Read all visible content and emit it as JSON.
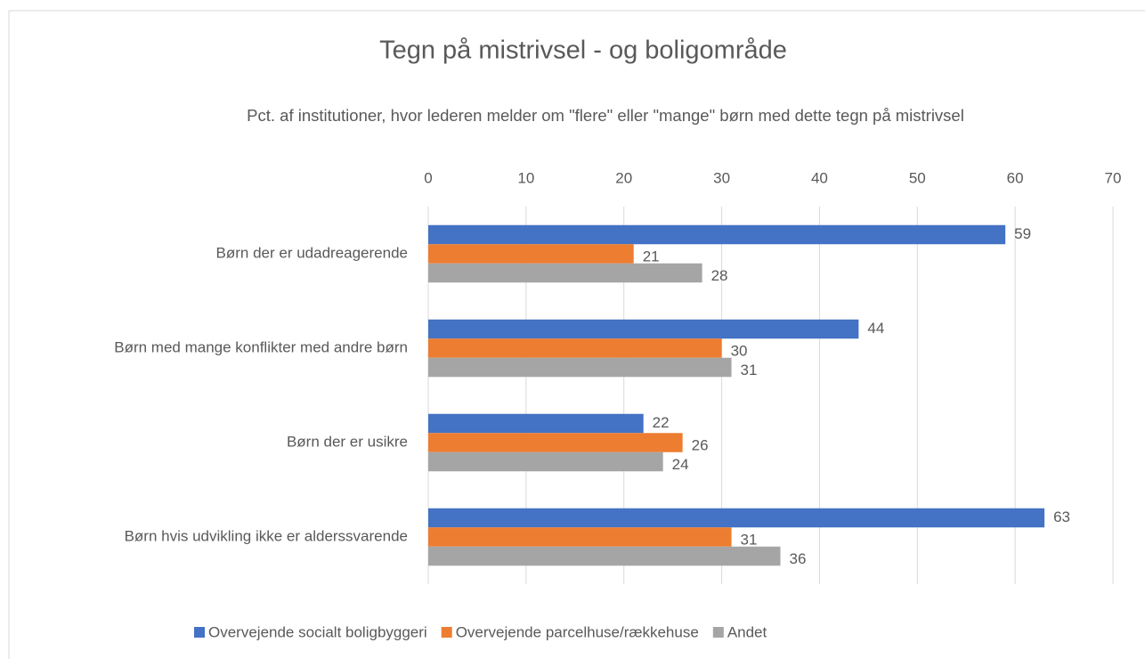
{
  "chart_data": {
    "type": "barh",
    "title": "Tegn på mistrivsel - og boligområde",
    "subtitle": "Pct. af institutioner, hvor lederen melder om \"flere\" eller \"mange\" børn med dette tegn på mistrivsel",
    "categories": [
      "Børn der er udadreagerende",
      "Børn med mange konflikter med andre børn",
      "Børn der er usikre",
      "Børn hvis udvikling ikke er alderssvarende"
    ],
    "series": [
      {
        "name": "Overvejende socialt boligbyggeri",
        "color": "#4472c4",
        "values": [
          59,
          44,
          22,
          63
        ]
      },
      {
        "name": "Overvejende parcelhuse/rækkehuse",
        "color": "#ed7d31",
        "values": [
          21,
          30,
          26,
          31
        ]
      },
      {
        "name": "Andet",
        "color": "#a5a5a5",
        "values": [
          28,
          31,
          24,
          36
        ]
      }
    ],
    "xlim": [
      0,
      70
    ],
    "xticks": [
      0,
      10,
      20,
      30,
      40,
      50,
      60,
      70
    ],
    "grid": true,
    "legend": "bottom"
  }
}
